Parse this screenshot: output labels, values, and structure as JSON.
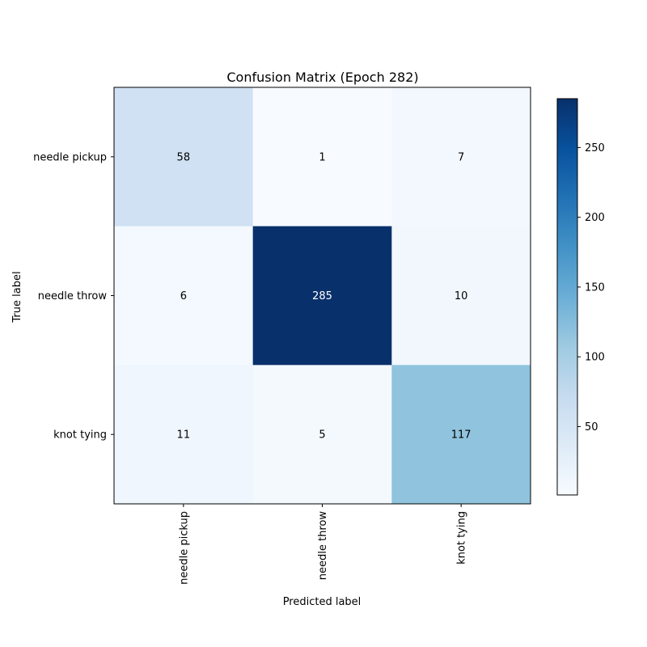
{
  "chart_data": {
    "type": "heatmap",
    "title": "Confusion Matrix (Epoch 282)",
    "xlabel": "Predicted label",
    "ylabel": "True label",
    "x_categories": [
      "needle pickup",
      "needle throw",
      "knot tying"
    ],
    "y_categories": [
      "needle pickup",
      "needle throw",
      "knot tying"
    ],
    "values": [
      [
        58,
        1,
        7
      ],
      [
        6,
        285,
        10
      ],
      [
        11,
        5,
        117
      ]
    ],
    "colormap": "Blues",
    "colorbar": {
      "min": 1,
      "max": 285,
      "ticks": [
        50,
        100,
        150,
        200,
        250
      ]
    }
  }
}
